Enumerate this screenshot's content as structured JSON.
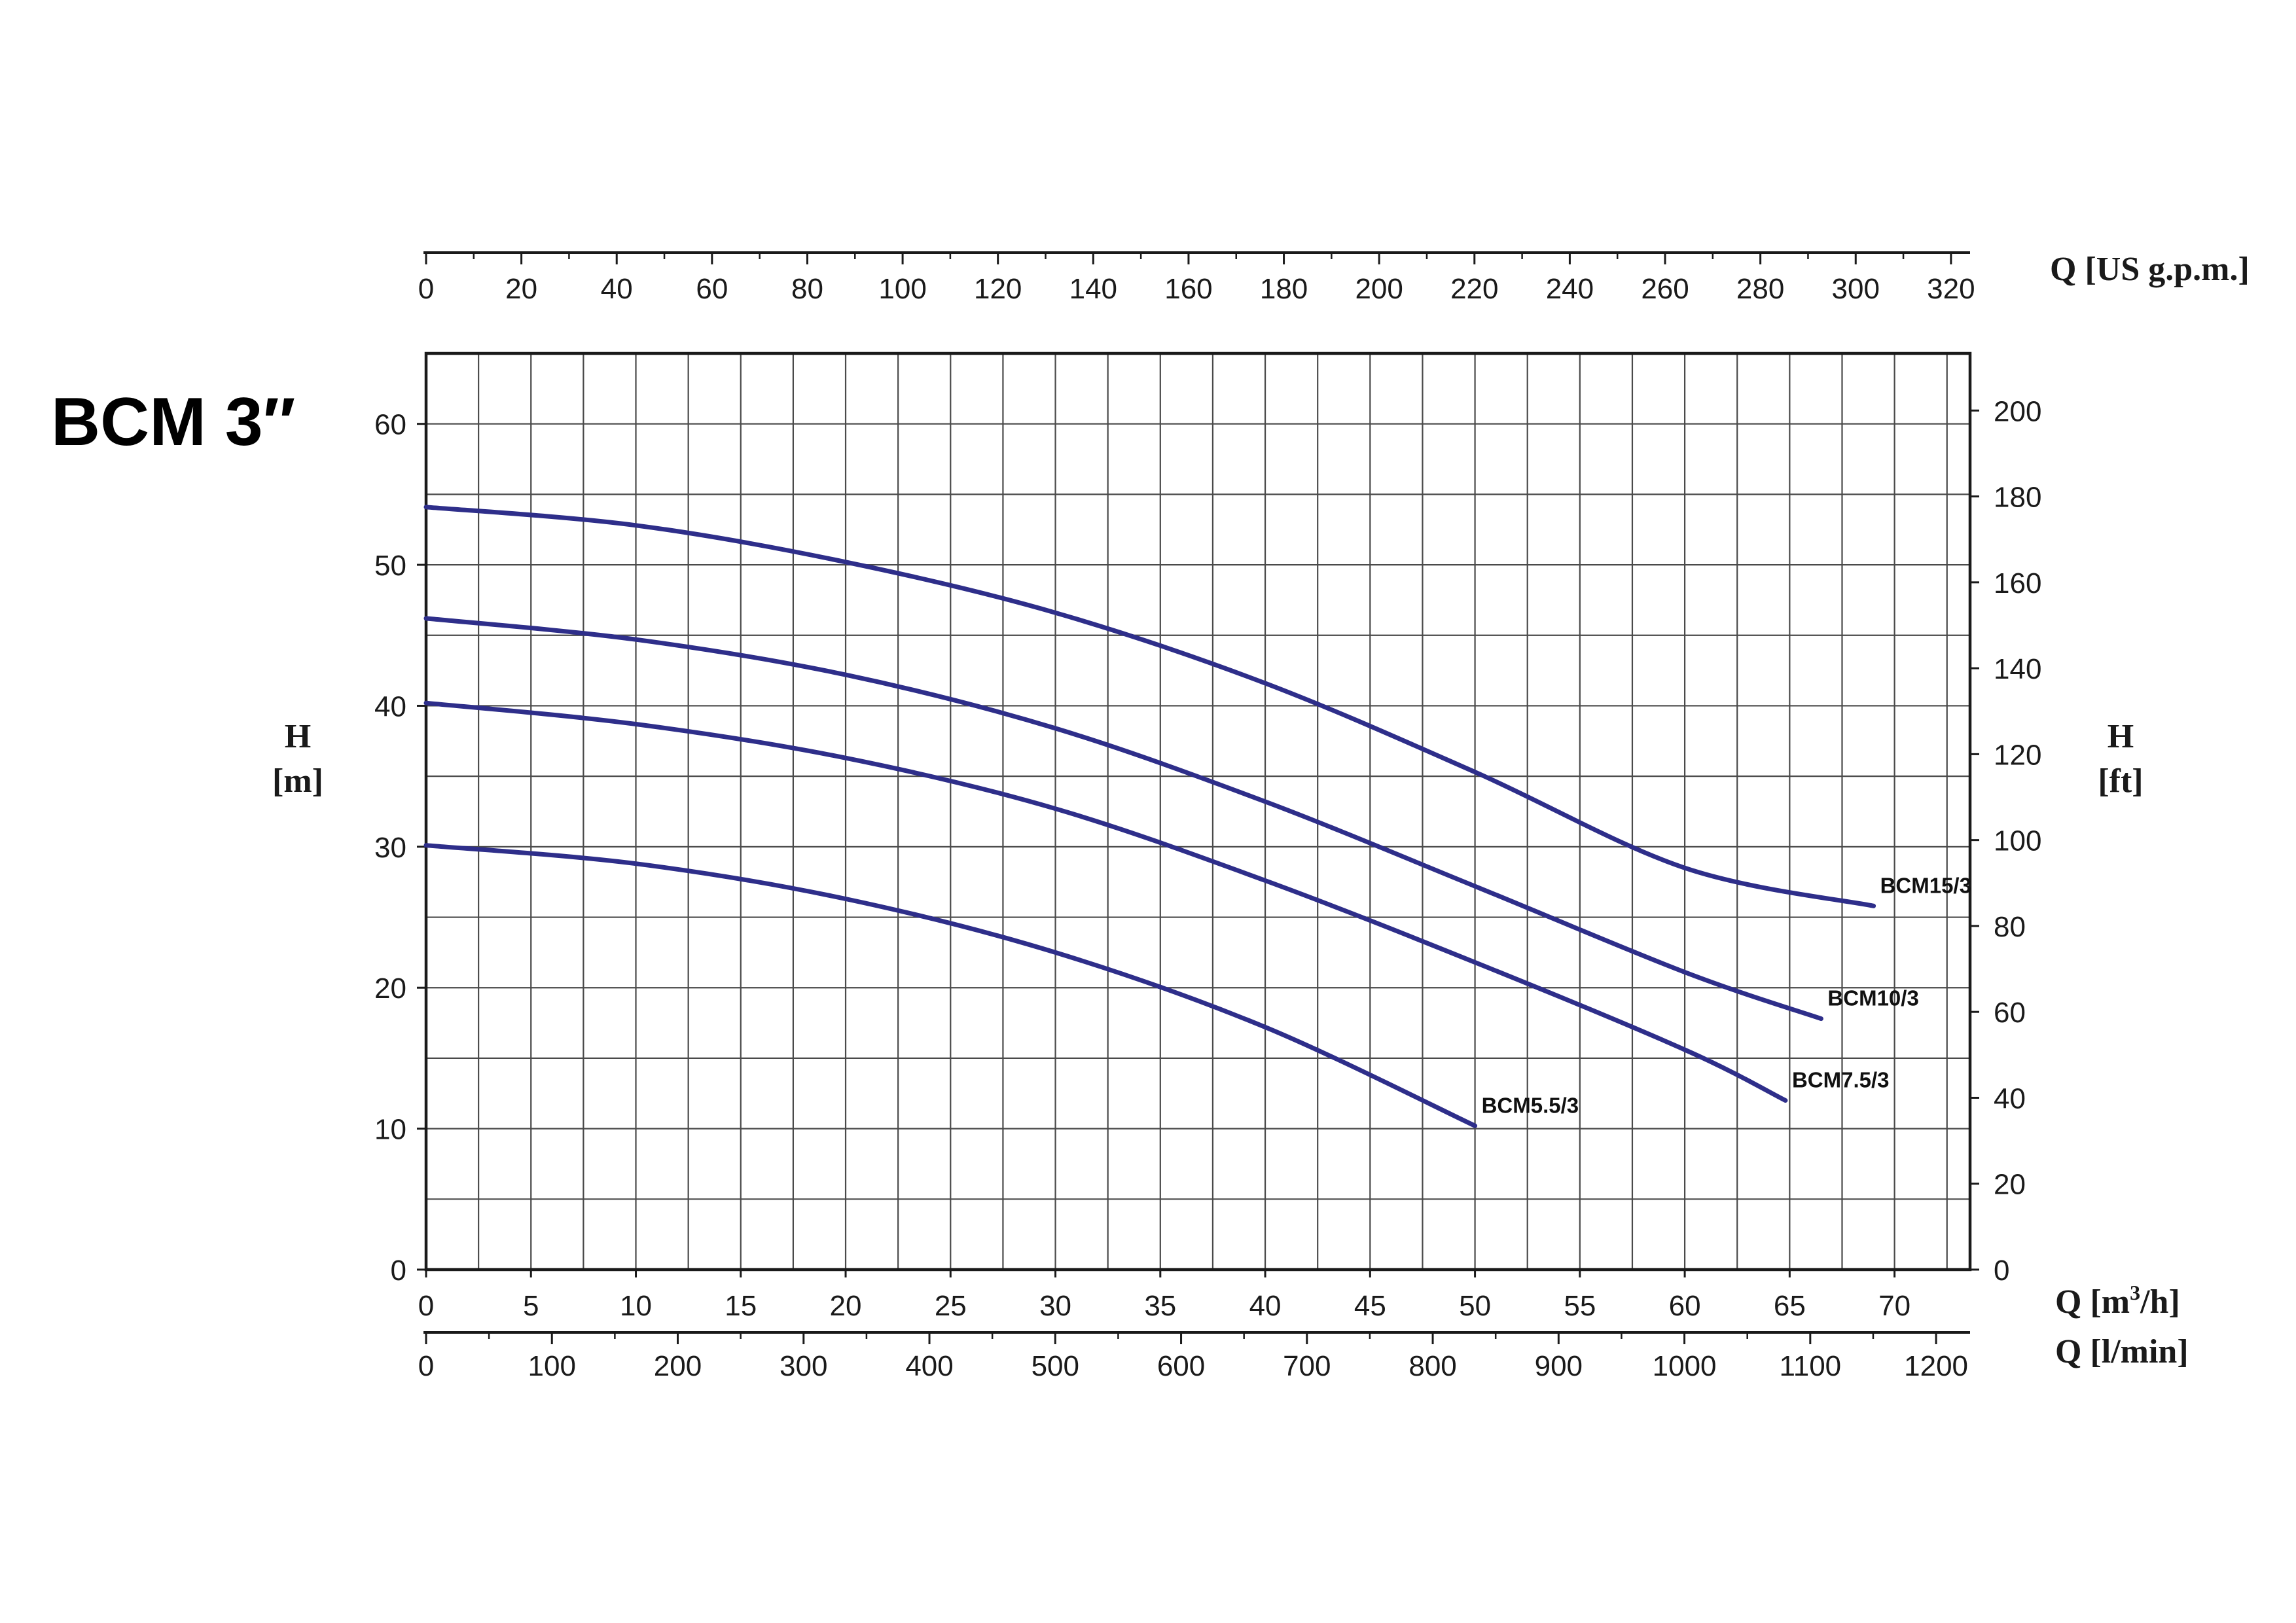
{
  "chart_data": {
    "type": "line",
    "title": "BCM 3″",
    "x_axes": {
      "primary": {
        "label": "Q [m³/h]",
        "label_main": "Q [m",
        "label_sup": "3",
        "label_tail": "/h]",
        "range": [
          0,
          73.6
        ],
        "ticks": [
          0,
          5,
          10,
          15,
          20,
          25,
          30,
          35,
          40,
          45,
          50,
          55,
          60,
          65,
          70
        ]
      },
      "lpm": {
        "label": "Q [l/min]",
        "range": [
          0,
          1227
        ],
        "ticks": [
          0,
          100,
          200,
          300,
          400,
          500,
          600,
          700,
          800,
          900,
          1000,
          1100,
          1200
        ]
      },
      "usgpm": {
        "label": "Q [US g.p.m.]",
        "range": [
          0,
          324
        ],
        "ticks": [
          0,
          20,
          40,
          60,
          80,
          100,
          120,
          140,
          160,
          180,
          200,
          220,
          240,
          260,
          280,
          300,
          320
        ]
      }
    },
    "y_axes": {
      "left": {
        "label_line1": "H",
        "label_line2": "[m]",
        "range": [
          0,
          65
        ],
        "ticks": [
          0,
          10,
          20,
          30,
          40,
          50,
          60
        ]
      },
      "right": {
        "label_line1": "H",
        "label_line2": "[ft]",
        "range": [
          0,
          213.3
        ],
        "ticks": [
          0,
          20,
          40,
          60,
          80,
          100,
          120,
          140,
          160,
          180,
          200
        ]
      }
    },
    "grid": true,
    "series": [
      {
        "name": "BCM15/3",
        "color": "#2e2e8a",
        "points": [
          [
            0,
            54.1
          ],
          [
            10,
            52.8
          ],
          [
            20,
            50.2
          ],
          [
            30,
            46.6
          ],
          [
            40,
            41.6
          ],
          [
            50,
            35.3
          ],
          [
            60,
            28.5
          ],
          [
            69,
            25.8
          ]
        ]
      },
      {
        "name": "BCM10/3",
        "color": "#2e2e8a",
        "points": [
          [
            0,
            46.2
          ],
          [
            10,
            44.7
          ],
          [
            20,
            42.2
          ],
          [
            30,
            38.4
          ],
          [
            40,
            33.2
          ],
          [
            50,
            27.2
          ],
          [
            60,
            21.1
          ],
          [
            66.5,
            17.8
          ]
        ]
      },
      {
        "name": "BCM7.5/3",
        "color": "#2e2e8a",
        "points": [
          [
            0,
            40.2
          ],
          [
            10,
            38.7
          ],
          [
            20,
            36.3
          ],
          [
            30,
            32.7
          ],
          [
            40,
            27.6
          ],
          [
            50,
            21.8
          ],
          [
            60,
            15.6
          ],
          [
            64.8,
            12.0
          ]
        ]
      },
      {
        "name": "BCM5.5/3",
        "color": "#2e2e8a",
        "points": [
          [
            0,
            30.1
          ],
          [
            10,
            28.8
          ],
          [
            20,
            26.3
          ],
          [
            30,
            22.5
          ],
          [
            40,
            17.2
          ],
          [
            50,
            10.2
          ]
        ]
      }
    ]
  }
}
